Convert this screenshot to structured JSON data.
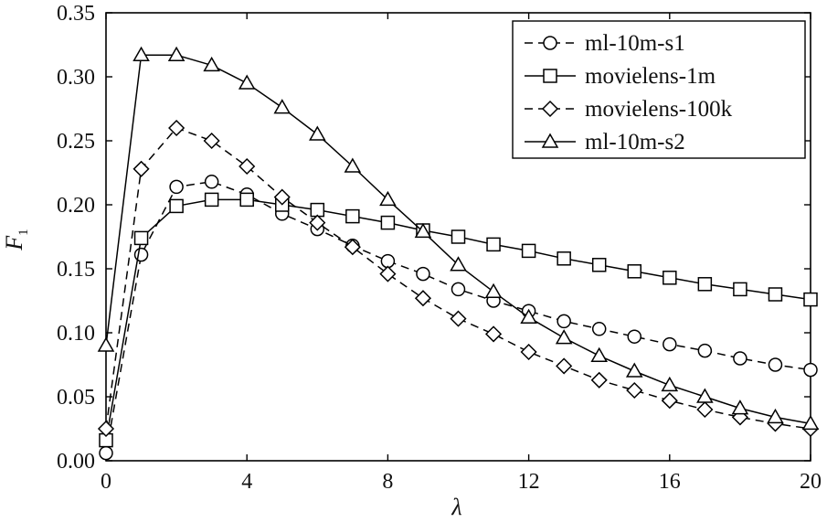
{
  "chart_data": {
    "type": "line",
    "xlabel": "λ",
    "ylabel": "F",
    "ylabel_subscript": "1",
    "xlim": [
      0,
      20
    ],
    "ylim": [
      0,
      0.35
    ],
    "xticks": [
      "0",
      "4",
      "8",
      "12",
      "16",
      "20"
    ],
    "yticks": [
      "0.00",
      "0.05",
      "0.10",
      "0.15",
      "0.20",
      "0.25",
      "0.30",
      "0.35"
    ],
    "grid": false,
    "legend_position": "top-right",
    "x": [
      0,
      1,
      2,
      3,
      4,
      5,
      6,
      7,
      8,
      9,
      10,
      11,
      12,
      13,
      14,
      15,
      16,
      17,
      18,
      19,
      20
    ],
    "series": [
      {
        "name": "ml-10m-s1",
        "marker": "circle",
        "dash": "dashed",
        "values": [
          0.006,
          0.161,
          0.214,
          0.218,
          0.208,
          0.193,
          0.181,
          0.168,
          0.156,
          0.146,
          0.134,
          0.125,
          0.117,
          0.109,
          0.103,
          0.097,
          0.091,
          0.086,
          0.08,
          0.075,
          0.071
        ]
      },
      {
        "name": "movielens-1m",
        "marker": "square",
        "dash": "solid",
        "values": [
          0.016,
          0.174,
          0.199,
          0.204,
          0.204,
          0.2,
          0.196,
          0.191,
          0.186,
          0.18,
          0.175,
          0.169,
          0.164,
          0.158,
          0.153,
          0.148,
          0.143,
          0.138,
          0.134,
          0.13,
          0.126
        ]
      },
      {
        "name": "movielens-100k",
        "marker": "diamond",
        "dash": "dashed",
        "values": [
          0.025,
          0.228,
          0.26,
          0.25,
          0.23,
          0.206,
          0.186,
          0.167,
          0.146,
          0.127,
          0.111,
          0.099,
          0.085,
          0.074,
          0.063,
          0.055,
          0.047,
          0.04,
          0.034,
          0.029,
          0.025
        ]
      },
      {
        "name": "ml-10m-s2",
        "marker": "triangle",
        "dash": "solid",
        "values": [
          0.09,
          0.317,
          0.317,
          0.309,
          0.295,
          0.276,
          0.255,
          0.23,
          0.204,
          0.179,
          0.153,
          0.132,
          0.112,
          0.096,
          0.082,
          0.07,
          0.059,
          0.05,
          0.041,
          0.034,
          0.029
        ]
      }
    ]
  }
}
